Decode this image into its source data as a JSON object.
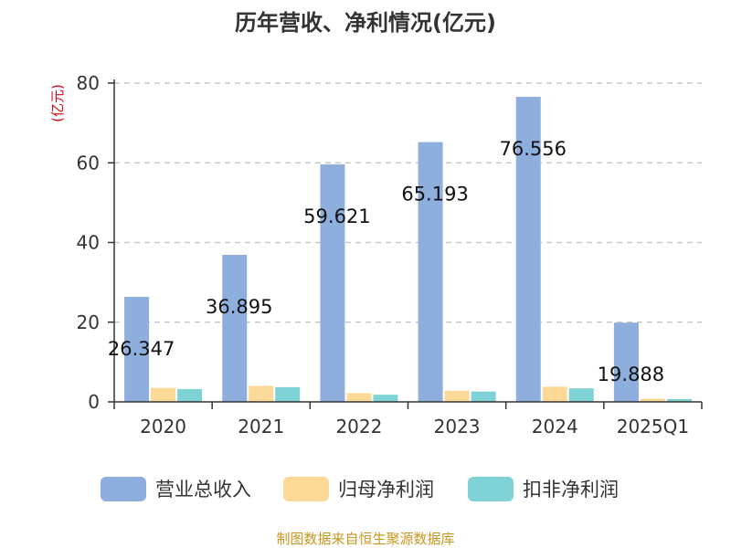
{
  "title": "历年营收、净利情况(亿元)",
  "unit_label": "(亿元)",
  "source_note": "制图数据来自恒生聚源数据库",
  "colors": {
    "revenue": "#8eaedd",
    "parent_net_profit": "#fcd997",
    "deducted_net_profit": "#7fd3d6",
    "grid": "#c8c8c8",
    "axis": "#333333"
  },
  "chart_data": {
    "type": "bar",
    "title": "历年营收、净利情况(亿元)",
    "ylabel": "(亿元)",
    "xlabel": "",
    "ylim": [
      0,
      80
    ],
    "yticks": [
      0,
      20,
      40,
      60,
      80
    ],
    "grid": true,
    "legend_position": "bottom",
    "categories": [
      "2020",
      "2021",
      "2022",
      "2023",
      "2024",
      "2025Q1"
    ],
    "series": [
      {
        "name": "营业总收入",
        "values": [
          26.347,
          36.895,
          59.621,
          65.193,
          76.556,
          19.888
        ],
        "labels": [
          "26.347",
          "36.895",
          "59.621",
          "65.193",
          "76.556",
          "19.888"
        ]
      },
      {
        "name": "归母净利润",
        "values": [
          3.5,
          4.0,
          2.2,
          2.8,
          3.8,
          0.8
        ]
      },
      {
        "name": "扣非净利润",
        "values": [
          3.2,
          3.7,
          1.8,
          2.6,
          3.4,
          0.7
        ]
      }
    ]
  }
}
